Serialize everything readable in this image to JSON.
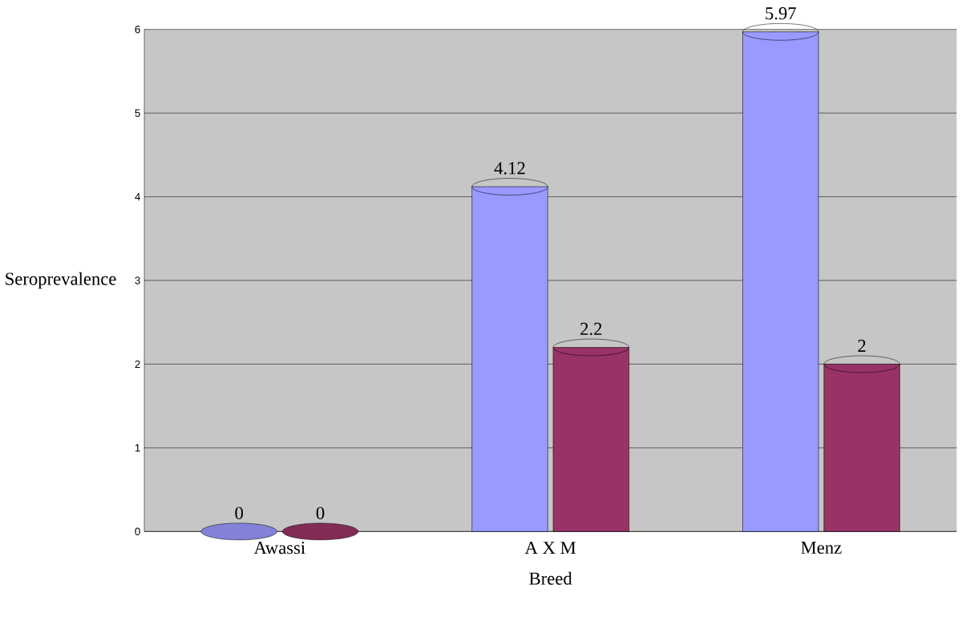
{
  "chart_data": {
    "type": "bar",
    "xlabel": "Breed",
    "ylabel": "Seroprevalence",
    "categories": [
      "Awassi",
      "A X M",
      "Menz"
    ],
    "series": [
      {
        "color": "#9999ff",
        "values": [
          0,
          4.12,
          5.97
        ]
      },
      {
        "color": "#993366",
        "values": [
          0,
          2.2,
          2
        ]
      }
    ],
    "ylim": [
      0,
      6
    ],
    "yticks": [
      0,
      1,
      2,
      3,
      4,
      5,
      6
    ],
    "grid": "y",
    "data_labels": true
  }
}
